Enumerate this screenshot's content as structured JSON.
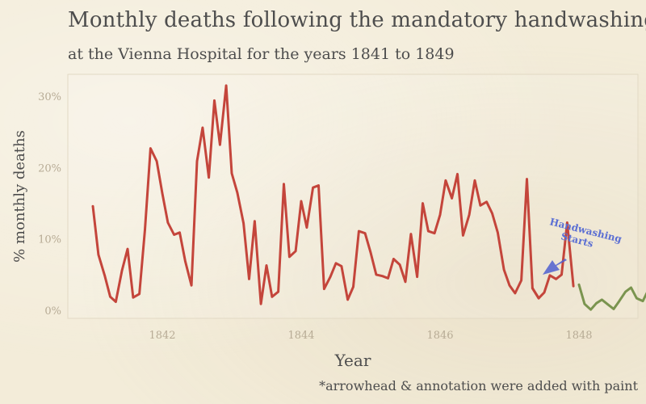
{
  "chart_data": {
    "type": "line",
    "title": "Monthly deaths following the mandatory handwashing",
    "subtitle": "at the Vienna Hospital for the years 1841 to 1849",
    "xlabel": "Year",
    "ylabel": "% monthly deaths",
    "caption": "*arrowhead & annotation were added with paint",
    "annotation": [
      "Handwashing",
      "Starts"
    ],
    "xticks": [
      "1842",
      "1844",
      "1846",
      "1848"
    ],
    "yticks": [
      "0%",
      "10%",
      "20%",
      "30%"
    ],
    "xlim": [
      1840.6,
      1849.1
    ],
    "ylim": [
      -1,
      33
    ],
    "grid": false,
    "series": [
      {
        "color": "#c4453b",
        "x": [
          1841.0,
          1841.08,
          1841.17,
          1841.25,
          1841.33,
          1841.42,
          1841.5,
          1841.58,
          1841.67,
          1841.75,
          1841.83,
          1841.92,
          1842.0,
          1842.08,
          1842.17,
          1842.25,
          1842.33,
          1842.42,
          1842.5,
          1842.58,
          1842.67,
          1842.75,
          1842.83,
          1842.92,
          1843.0,
          1843.08,
          1843.17,
          1843.25,
          1843.33,
          1843.42,
          1843.5,
          1843.58,
          1843.67,
          1843.75,
          1843.83,
          1843.92,
          1844.0,
          1844.08,
          1844.17,
          1844.25,
          1844.33,
          1844.42,
          1844.5,
          1844.58,
          1844.67,
          1844.75,
          1844.83,
          1844.92,
          1845.0,
          1845.08,
          1845.17,
          1845.25,
          1845.33,
          1845.42,
          1845.5,
          1845.58,
          1845.67,
          1845.75,
          1845.83,
          1845.92,
          1846.0,
          1846.08,
          1846.17,
          1846.25,
          1846.33,
          1846.42,
          1846.5,
          1846.58,
          1846.67,
          1846.75,
          1846.83,
          1846.92,
          1847.0,
          1847.08,
          1847.17,
          1847.25,
          1847.33,
          1847.42
        ],
        "y": [
          14.7,
          7.9,
          5.0,
          2.0,
          1.3,
          5.7,
          8.7,
          1.9,
          2.4,
          11.4,
          22.8,
          21.0,
          16.5,
          12.4,
          10.7,
          11.0,
          7.0,
          3.6,
          21.0,
          25.7,
          18.7,
          29.5,
          23.3,
          31.6,
          19.3,
          16.6,
          12.3,
          4.5,
          12.6,
          1.0,
          6.4,
          2.0,
          2.7,
          17.8,
          7.6,
          8.4,
          15.4,
          11.7,
          17.3,
          17.6,
          3.1,
          4.8,
          6.7,
          6.3,
          1.6,
          3.4,
          11.2,
          10.9,
          8.2,
          5.1,
          4.9,
          4.6,
          7.3,
          6.5,
          4.1,
          10.8,
          4.8,
          15.1,
          11.2,
          10.9,
          13.5,
          18.3,
          15.8,
          19.2,
          10.6,
          13.5,
          18.3,
          14.8,
          15.3,
          13.7,
          11.0,
          5.8,
          3.6,
          2.5,
          4.3,
          18.5,
          3.2,
          1.8
        ],
        "segments_note": ""
      },
      {
        "color": "#c4453b",
        "x": [
          1847.33,
          1847.42,
          1847.5,
          1847.58,
          1847.67,
          1847.75,
          1847.83,
          1847.92
        ],
        "y": [
          3.2,
          1.8,
          2.6,
          5.0,
          4.5,
          5.1,
          12.4,
          3.5
        ]
      },
      {
        "color": "#7a944f",
        "x": [
          1848.0,
          1848.08,
          1848.17,
          1848.25,
          1848.33,
          1848.42,
          1848.5,
          1848.58,
          1848.67,
          1848.75,
          1848.83,
          1848.92,
          1849.0,
          1849.08,
          1849.17,
          1849.25
        ],
        "y": [
          3.7,
          1.0,
          0.2,
          1.1,
          1.6,
          0.9,
          0.3,
          1.4,
          2.7,
          3.3,
          1.8,
          1.4,
          3.0,
          4.0,
          5.3,
          5.3
        ]
      }
    ]
  }
}
